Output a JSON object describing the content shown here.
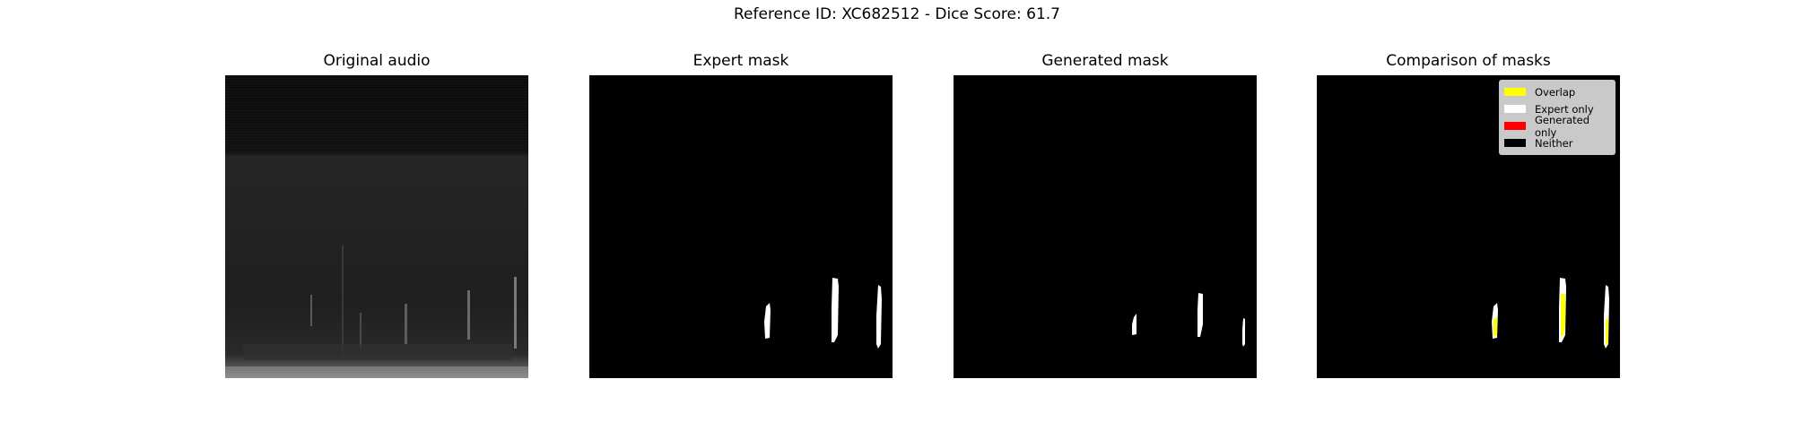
{
  "figure": {
    "suptitle": "Reference ID: XC682512 - Dice Score: 61.7"
  },
  "panels": {
    "original": {
      "title": "Original audio"
    },
    "expert": {
      "title": "Expert mask"
    },
    "generated": {
      "title": "Generated mask"
    },
    "comparison": {
      "title": "Comparison of masks"
    }
  },
  "legend": {
    "items": [
      {
        "label": "Overlap",
        "color": "#ffff00"
      },
      {
        "label": "Expert only",
        "color": "#ffffff"
      },
      {
        "label": "Generated only",
        "color": "#ff0000"
      },
      {
        "label": "Neither",
        "color": "#000000"
      }
    ]
  },
  "colors": {
    "background": "#ffffff",
    "mask_background": "#000000",
    "mask_fill": "#ffffff",
    "overlap": "#ffff00"
  }
}
